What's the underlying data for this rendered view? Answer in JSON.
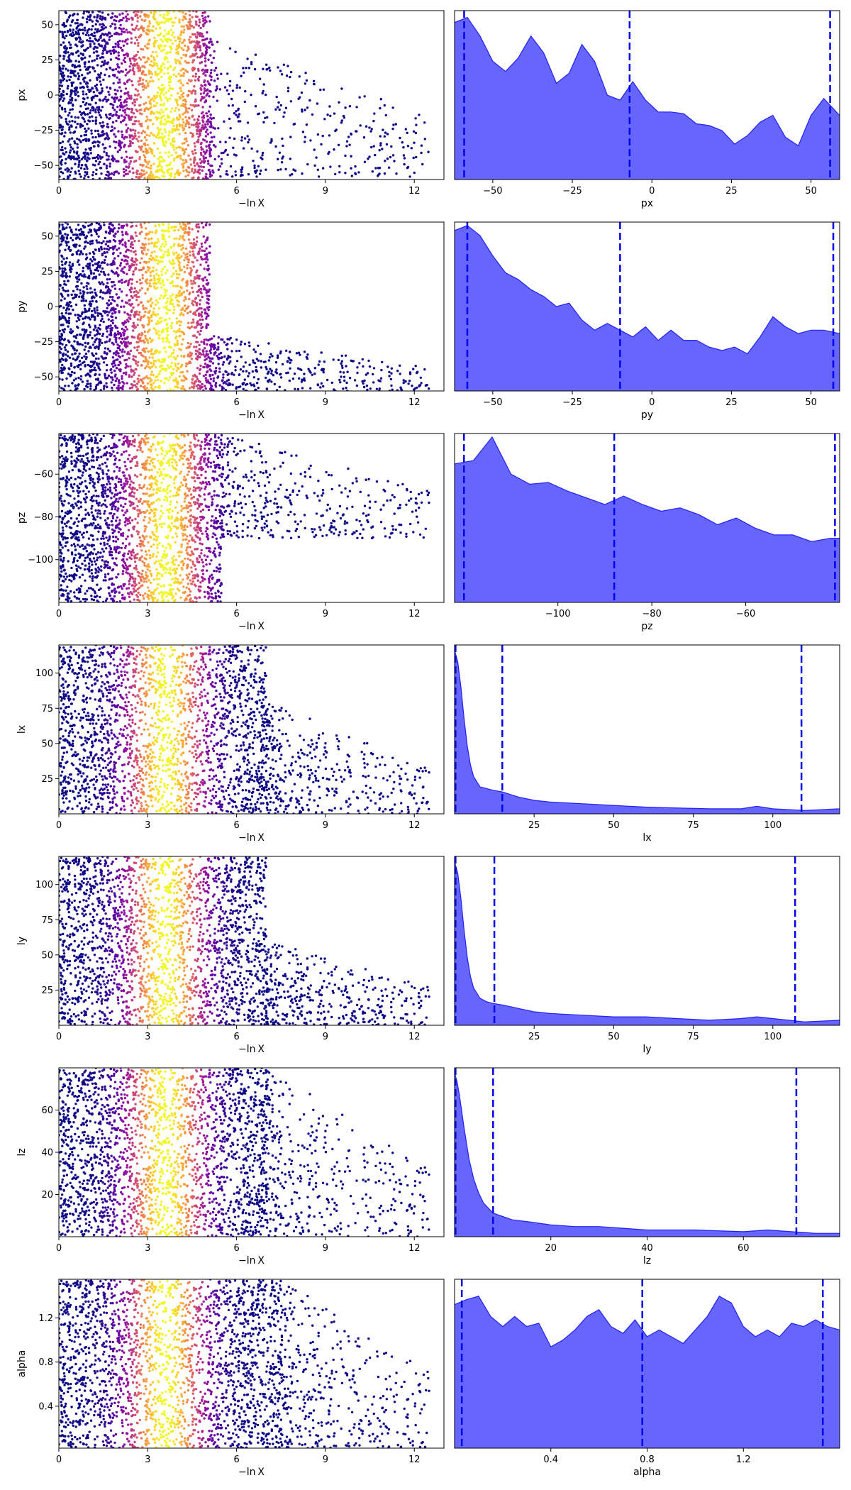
{
  "figure": {
    "type": "nested-sampling-trace-and-posterior-grid",
    "scatter_xlabel": "−ln X"
  },
  "chart_data": [
    {
      "type": "scatter",
      "parameter": "px",
      "ylabel": "px",
      "xlabel": "−ln X",
      "xlim": [
        0,
        13
      ],
      "ylim": [
        -60,
        60
      ],
      "xticks": [
        0,
        3,
        6,
        9,
        12
      ],
      "yticks": [
        -50,
        -25,
        0,
        25,
        50
      ],
      "color_scale": "plasma (low=#0d0887, high=#f0f921), peak at −ln X ≈ 3.6",
      "point_density": [
        {
          "x": [
            0,
            5.1
          ],
          "y": [
            -60,
            60
          ],
          "level": "dense"
        },
        {
          "x": [
            5.1,
            12.5
          ],
          "y": [
            -58,
            40
          ],
          "level": "sparse-tail"
        }
      ]
    },
    {
      "type": "area",
      "parameter": "px",
      "xlabel": "px",
      "xlim": [
        -62,
        59
      ],
      "xticks": [
        -50,
        -25,
        0,
        25,
        50
      ],
      "x": [
        -62,
        -58,
        -54,
        -50,
        -46,
        -42,
        -38,
        -34,
        -30,
        -26,
        -22,
        -18,
        -14,
        -10,
        -6,
        -2,
        2,
        6,
        10,
        14,
        18,
        22,
        26,
        30,
        34,
        38,
        42,
        46,
        50,
        54,
        59
      ],
      "density": [
        0.93,
        0.96,
        0.85,
        0.7,
        0.64,
        0.72,
        0.85,
        0.75,
        0.57,
        0.63,
        0.8,
        0.7,
        0.5,
        0.47,
        0.58,
        0.47,
        0.4,
        0.4,
        0.39,
        0.33,
        0.32,
        0.29,
        0.21,
        0.26,
        0.34,
        0.38,
        0.25,
        0.2,
        0.38,
        0.48,
        0.38
      ],
      "quantile_lines": [
        -59,
        -7,
        56
      ],
      "fill_color": "#6666ff",
      "line_color": "#0000ee"
    },
    {
      "type": "scatter",
      "parameter": "py",
      "ylabel": "py",
      "xlabel": "−ln X",
      "xlim": [
        0,
        13
      ],
      "ylim": [
        -60,
        60
      ],
      "xticks": [
        0,
        3,
        6,
        9,
        12
      ],
      "yticks": [
        -50,
        -25,
        0,
        25,
        50
      ],
      "color_scale": "plasma",
      "point_density": [
        {
          "x": [
            0,
            5.1
          ],
          "y": [
            -60,
            60
          ],
          "level": "dense"
        },
        {
          "x": [
            5.1,
            12.5
          ],
          "y": [
            -60,
            -20
          ],
          "level": "sparse-tail"
        }
      ]
    },
    {
      "type": "area",
      "parameter": "py",
      "xlabel": "py",
      "xlim": [
        -62,
        59
      ],
      "xticks": [
        -50,
        -25,
        0,
        25,
        50
      ],
      "x": [
        -62,
        -58,
        -54,
        -50,
        -46,
        -42,
        -38,
        -34,
        -30,
        -26,
        -22,
        -18,
        -14,
        -10,
        -6,
        -2,
        2,
        6,
        10,
        14,
        18,
        22,
        26,
        30,
        34,
        38,
        42,
        46,
        50,
        54,
        59
      ],
      "density": [
        0.95,
        0.98,
        0.92,
        0.8,
        0.7,
        0.66,
        0.6,
        0.56,
        0.5,
        0.52,
        0.42,
        0.36,
        0.4,
        0.36,
        0.32,
        0.38,
        0.3,
        0.36,
        0.3,
        0.3,
        0.26,
        0.24,
        0.26,
        0.22,
        0.32,
        0.44,
        0.38,
        0.34,
        0.36,
        0.36,
        0.34
      ],
      "quantile_lines": [
        -58,
        -10,
        57
      ],
      "fill_color": "#6666ff",
      "line_color": "#0000ee"
    },
    {
      "type": "scatter",
      "parameter": "pz",
      "ylabel": "pz",
      "xlabel": "−ln X",
      "xlim": [
        0,
        13
      ],
      "ylim": [
        -120,
        -41
      ],
      "xticks": [
        0,
        3,
        6,
        9,
        12
      ],
      "yticks": [
        -100,
        -80,
        -60
      ],
      "color_scale": "plasma",
      "point_density": [
        {
          "x": [
            0,
            5.5
          ],
          "y": [
            -120,
            -41
          ],
          "level": "dense"
        },
        {
          "x": [
            5.5,
            12.5
          ],
          "y": [
            -90,
            -41
          ],
          "level": "sparse-tail"
        }
      ]
    },
    {
      "type": "area",
      "parameter": "pz",
      "xlabel": "pz",
      "xlim": [
        -122,
        -40
      ],
      "xticks": [
        -100,
        -80,
        -60
      ],
      "x": [
        -122,
        -118,
        -114,
        -110,
        -106,
        -102,
        -98,
        -94,
        -90,
        -86,
        -82,
        -78,
        -74,
        -70,
        -66,
        -62,
        -58,
        -54,
        -50,
        -46,
        -42,
        -40
      ],
      "density": [
        0.82,
        0.84,
        0.98,
        0.76,
        0.7,
        0.71,
        0.66,
        0.62,
        0.58,
        0.63,
        0.58,
        0.54,
        0.56,
        0.52,
        0.46,
        0.5,
        0.44,
        0.4,
        0.4,
        0.36,
        0.38,
        0.38
      ],
      "quantile_lines": [
        -120,
        -88,
        -41
      ],
      "fill_color": "#6666ff",
      "line_color": "#0000ee"
    },
    {
      "type": "scatter",
      "parameter": "lx",
      "ylabel": "lx",
      "xlabel": "−ln X",
      "xlim": [
        0,
        13
      ],
      "ylim": [
        0,
        120
      ],
      "xticks": [
        0,
        3,
        6,
        9,
        12
      ],
      "yticks": [
        25,
        50,
        75,
        100
      ],
      "color_scale": "plasma",
      "point_density": [
        {
          "x": [
            0,
            7
          ],
          "y": [
            0,
            120
          ],
          "level": "dense"
        },
        {
          "x": [
            7,
            12.5
          ],
          "y": [
            0,
            80
          ],
          "level": "sparse-tail"
        }
      ]
    },
    {
      "type": "area",
      "parameter": "lx",
      "xlabel": "lx",
      "xlim": [
        0,
        121
      ],
      "xticks": [
        25,
        50,
        75,
        100
      ],
      "x": [
        0,
        1,
        2,
        3,
        4,
        5,
        6,
        8,
        10,
        12,
        15,
        20,
        25,
        30,
        40,
        50,
        60,
        70,
        80,
        90,
        95,
        100,
        110,
        121
      ],
      "density": [
        0.97,
        0.9,
        0.75,
        0.56,
        0.4,
        0.29,
        0.22,
        0.16,
        0.15,
        0.14,
        0.13,
        0.1,
        0.08,
        0.07,
        0.06,
        0.05,
        0.04,
        0.035,
        0.03,
        0.03,
        0.045,
        0.03,
        0.02,
        0.03
      ],
      "quantile_lines": [
        0.3,
        15,
        109
      ],
      "fill_color": "#6666ff",
      "line_color": "#0000ee"
    },
    {
      "type": "scatter",
      "parameter": "ly",
      "ylabel": "ly",
      "xlabel": "−ln X",
      "xlim": [
        0,
        13
      ],
      "ylim": [
        0,
        120
      ],
      "xticks": [
        0,
        3,
        6,
        9,
        12
      ],
      "yticks": [
        25,
        50,
        75,
        100
      ],
      "color_scale": "plasma",
      "point_density": [
        {
          "x": [
            0,
            7
          ],
          "y": [
            0,
            120
          ],
          "level": "dense"
        },
        {
          "x": [
            7,
            12.5
          ],
          "y": [
            0,
            60
          ],
          "level": "sparse-tail"
        }
      ]
    },
    {
      "type": "area",
      "parameter": "ly",
      "xlabel": "ly",
      "xlim": [
        0,
        121
      ],
      "xticks": [
        25,
        50,
        75,
        100
      ],
      "x": [
        0,
        1,
        2,
        3,
        4,
        5,
        6,
        8,
        10,
        12,
        15,
        20,
        25,
        30,
        40,
        50,
        60,
        70,
        80,
        90,
        95,
        100,
        110,
        121
      ],
      "density": [
        0.97,
        0.9,
        0.75,
        0.56,
        0.4,
        0.29,
        0.22,
        0.16,
        0.14,
        0.13,
        0.12,
        0.1,
        0.08,
        0.07,
        0.06,
        0.05,
        0.05,
        0.04,
        0.03,
        0.04,
        0.05,
        0.04,
        0.02,
        0.03
      ],
      "quantile_lines": [
        0.3,
        12.5,
        107
      ],
      "fill_color": "#6666ff",
      "line_color": "#0000ee"
    },
    {
      "type": "scatter",
      "parameter": "lz",
      "ylabel": "lz",
      "xlabel": "−ln X",
      "xlim": [
        0,
        13
      ],
      "ylim": [
        0,
        80
      ],
      "xticks": [
        0,
        3,
        6,
        9,
        12
      ],
      "yticks": [
        20,
        40,
        60
      ],
      "color_scale": "plasma",
      "point_density": [
        {
          "x": [
            0,
            7
          ],
          "y": [
            0,
            80
          ],
          "level": "dense"
        },
        {
          "x": [
            7,
            12.5
          ],
          "y": [
            0,
            80
          ],
          "level": "sparse-tail"
        }
      ]
    },
    {
      "type": "area",
      "parameter": "lz",
      "xlabel": "lz",
      "xlim": [
        0,
        80
      ],
      "xticks": [
        20,
        40,
        60
      ],
      "x": [
        0,
        0.5,
        1,
        2,
        3,
        4,
        5,
        6,
        8,
        10,
        12,
        15,
        20,
        25,
        30,
        40,
        50,
        60,
        65,
        70,
        75,
        80
      ],
      "density": [
        0.97,
        0.92,
        0.84,
        0.64,
        0.46,
        0.34,
        0.26,
        0.2,
        0.14,
        0.12,
        0.1,
        0.09,
        0.07,
        0.06,
        0.06,
        0.04,
        0.04,
        0.03,
        0.04,
        0.03,
        0.02,
        0.02
      ],
      "quantile_lines": [
        0.2,
        8,
        71
      ],
      "fill_color": "#6666ff",
      "line_color": "#0000ee"
    },
    {
      "type": "scatter",
      "parameter": "alpha",
      "ylabel": "alpha",
      "xlabel": "−ln X",
      "xlim": [
        0,
        13
      ],
      "ylim": [
        0.02,
        1.55
      ],
      "xticks": [
        0,
        3,
        6,
        9,
        12
      ],
      "yticks": [
        0.4,
        0.8,
        1.2
      ],
      "color_scale": "plasma",
      "point_density": [
        {
          "x": [
            0,
            7.5
          ],
          "y": [
            0.02,
            1.55
          ],
          "level": "dense"
        },
        {
          "x": [
            7.5,
            12.5
          ],
          "y": [
            0.02,
            1.55
          ],
          "level": "sparse-tail"
        }
      ]
    },
    {
      "type": "area",
      "parameter": "alpha",
      "xlabel": "alpha",
      "xlim": [
        0.0,
        1.6
      ],
      "xticks": [
        0.4,
        0.8,
        1.2
      ],
      "x": [
        0.0,
        0.05,
        0.1,
        0.15,
        0.2,
        0.25,
        0.3,
        0.35,
        0.4,
        0.45,
        0.5,
        0.55,
        0.6,
        0.65,
        0.7,
        0.75,
        0.8,
        0.85,
        0.9,
        0.95,
        1.0,
        1.05,
        1.1,
        1.15,
        1.2,
        1.25,
        1.3,
        1.35,
        1.4,
        1.45,
        1.5,
        1.55,
        1.6
      ],
      "density": [
        0.85,
        0.88,
        0.9,
        0.78,
        0.72,
        0.78,
        0.72,
        0.74,
        0.6,
        0.64,
        0.7,
        0.78,
        0.82,
        0.72,
        0.68,
        0.76,
        0.66,
        0.7,
        0.66,
        0.62,
        0.7,
        0.78,
        0.9,
        0.86,
        0.72,
        0.66,
        0.7,
        0.66,
        0.74,
        0.72,
        0.76,
        0.72,
        0.7
      ],
      "quantile_lines": [
        0.03,
        0.78,
        1.53
      ],
      "fill_color": "#6666ff",
      "line_color": "#0000ee"
    }
  ]
}
